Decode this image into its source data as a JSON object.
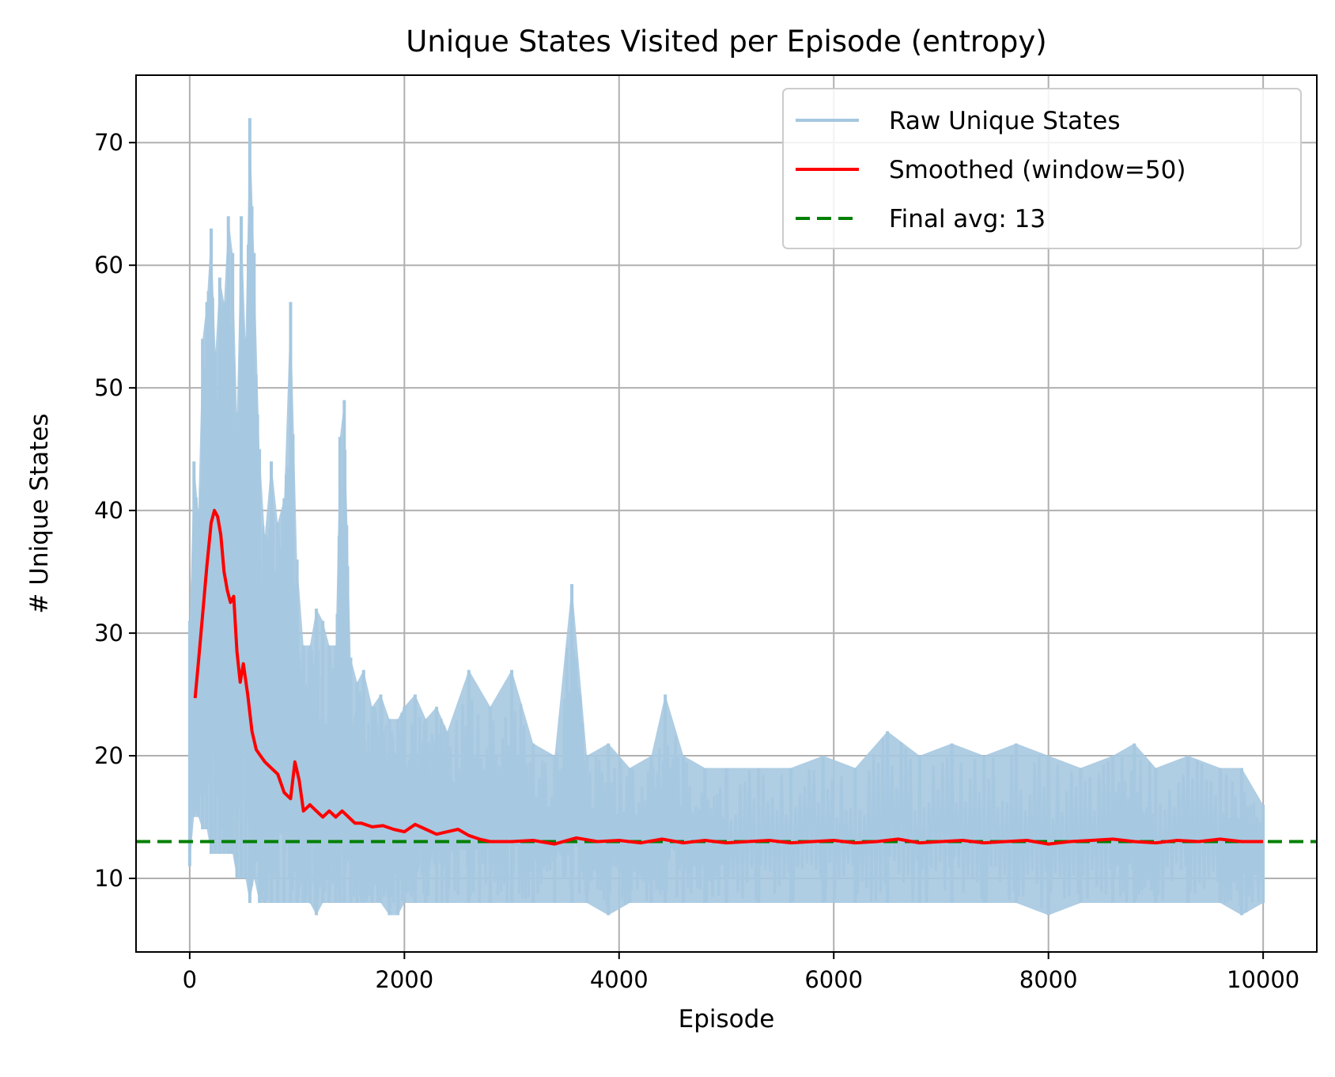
{
  "chart_data": {
    "type": "line",
    "title": "Unique States Visited per Episode (entropy)",
    "xlabel": "Episode",
    "ylabel": "# Unique States",
    "xlim": [
      -500,
      10500
    ],
    "ylim": [
      4,
      75.5
    ],
    "xticks": [
      0,
      2000,
      4000,
      6000,
      8000,
      10000
    ],
    "yticks": [
      10,
      20,
      30,
      40,
      50,
      60,
      70
    ],
    "grid": true,
    "legend_position": "top-right",
    "series": [
      {
        "name": "Raw Unique States",
        "color": "#a6c8e0",
        "style": "solid",
        "x": [
          0,
          40,
          80,
          120,
          160,
          200,
          240,
          280,
          320,
          360,
          400,
          440,
          480,
          520,
          560,
          600,
          650,
          700,
          760,
          820,
          880,
          940,
          1000,
          1060,
          1120,
          1180,
          1240,
          1300,
          1360,
          1400,
          1440,
          1500,
          1560,
          1620,
          1700,
          1780,
          1860,
          1940,
          2000,
          2100,
          2200,
          2300,
          2400,
          2600,
          2800,
          3000,
          3200,
          3400,
          3560,
          3700,
          3900,
          4100,
          4300,
          4430,
          4600,
          4800,
          5000,
          5300,
          5600,
          5900,
          6200,
          6500,
          6800,
          7100,
          7400,
          7700,
          8000,
          8300,
          8600,
          8800,
          9000,
          9300,
          9600,
          9800,
          10000
        ],
        "y": [
          31,
          44,
          40,
          54,
          57,
          63,
          53,
          59,
          57,
          64,
          61,
          48,
          64,
          54,
          72,
          61,
          45,
          38,
          44,
          39,
          41,
          57,
          36,
          29,
          29,
          32,
          31,
          29,
          29,
          46,
          49,
          28,
          26,
          27,
          24,
          25,
          23,
          23,
          24,
          25,
          23,
          24,
          22,
          27,
          24,
          27,
          21,
          20,
          34,
          20,
          21,
          19,
          20,
          25,
          20,
          19,
          19,
          19,
          19,
          20,
          19,
          22,
          20,
          21,
          20,
          21,
          20,
          19,
          20,
          21,
          19,
          20,
          19,
          19,
          16
        ],
        "y_low": [
          11,
          15,
          15,
          14,
          14,
          12,
          12,
          12,
          12,
          12,
          12,
          10,
          10,
          10,
          8,
          10,
          8,
          8,
          8,
          8,
          8,
          8,
          8,
          8,
          8,
          7,
          8,
          8,
          8,
          8,
          8,
          8,
          8,
          8,
          8,
          8,
          7,
          7,
          8,
          8,
          8,
          8,
          8,
          8,
          8,
          8,
          8,
          8,
          8,
          8,
          7,
          8,
          8,
          8,
          8,
          8,
          8,
          8,
          8,
          8,
          8,
          8,
          8,
          8,
          8,
          8,
          7,
          8,
          8,
          8,
          8,
          8,
          8,
          7,
          8
        ]
      },
      {
        "name": "Smoothed (window=50)",
        "color": "#ff0000",
        "style": "solid",
        "x": [
          50,
          80,
          120,
          160,
          200,
          230,
          260,
          290,
          320,
          350,
          380,
          410,
          440,
          470,
          500,
          540,
          580,
          620,
          660,
          700,
          760,
          820,
          880,
          940,
          980,
          1020,
          1060,
          1120,
          1180,
          1240,
          1300,
          1360,
          1420,
          1480,
          1540,
          1600,
          1700,
          1800,
          1900,
          2000,
          2100,
          2200,
          2300,
          2400,
          2500,
          2600,
          2700,
          2800,
          3000,
          3200,
          3400,
          3600,
          3800,
          4000,
          4200,
          4400,
          4600,
          4800,
          5000,
          5200,
          5400,
          5600,
          5800,
          6000,
          6200,
          6400,
          6600,
          6800,
          7000,
          7200,
          7400,
          7600,
          7800,
          8000,
          8200,
          8400,
          8600,
          8800,
          9000,
          9200,
          9400,
          9600,
          9800,
          10000
        ],
        "y": [
          24.7,
          27.5,
          31.5,
          35.5,
          39.0,
          40.0,
          39.5,
          38.0,
          35.0,
          33.5,
          32.5,
          33.0,
          28.5,
          26.0,
          27.5,
          25.0,
          22.0,
          20.5,
          20.0,
          19.5,
          19.0,
          18.5,
          17.0,
          16.5,
          19.5,
          18.0,
          15.5,
          16.0,
          15.5,
          15.0,
          15.5,
          15.0,
          15.5,
          15.0,
          14.5,
          14.5,
          14.2,
          14.3,
          14.0,
          13.8,
          14.4,
          14.0,
          13.6,
          13.8,
          14.0,
          13.5,
          13.2,
          13.0,
          13.0,
          13.1,
          12.8,
          13.3,
          13.0,
          13.1,
          12.9,
          13.2,
          12.9,
          13.1,
          12.9,
          13.0,
          13.1,
          12.9,
          13.0,
          13.1,
          12.9,
          13.0,
          13.2,
          12.9,
          13.0,
          13.1,
          12.9,
          13.0,
          13.1,
          12.8,
          13.0,
          13.1,
          13.2,
          13.0,
          12.9,
          13.1,
          13.0,
          13.2,
          13.0,
          13.0
        ]
      },
      {
        "name": "Final avg: 13",
        "color": "#008000",
        "style": "dashed",
        "y_const": 13
      }
    ]
  }
}
